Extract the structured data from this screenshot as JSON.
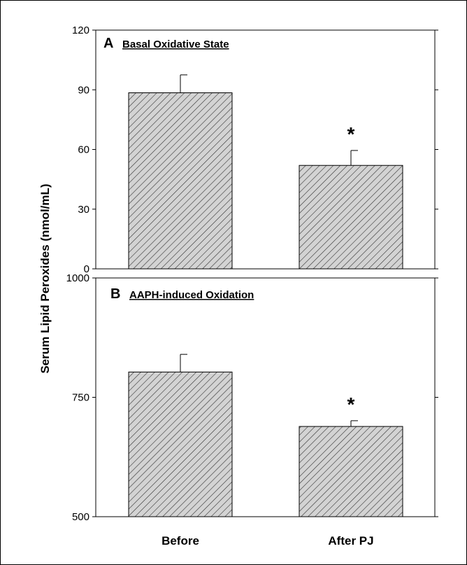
{
  "figure": {
    "ylabel": "Serum Lipid Peroxides (nmol/mL)"
  },
  "chart_data": [
    {
      "type": "bar",
      "panel_letter": "A",
      "title": "Basal Oxidative State",
      "categories": [
        "Before",
        "After PJ"
      ],
      "values": [
        88.5,
        52
      ],
      "errors": [
        9,
        7.5
      ],
      "significance": [
        "",
        "*"
      ],
      "ylim": [
        0,
        120
      ],
      "yticks": [
        "0",
        "30",
        "60",
        "90",
        "120"
      ],
      "bar_fill": "#d3d3d3",
      "hatch": "diagonal"
    },
    {
      "type": "bar",
      "panel_letter": "B",
      "title": "AAPH-induced Oxidation",
      "categories": [
        "Before",
        "After PJ"
      ],
      "values": [
        803,
        689
      ],
      "errors": [
        37,
        12
      ],
      "significance": [
        "",
        "*"
      ],
      "ylim": [
        500,
        1000
      ],
      "yticks": [
        "500",
        "750",
        "1000"
      ],
      "bar_fill": "#d3d3d3",
      "hatch": "diagonal"
    }
  ]
}
